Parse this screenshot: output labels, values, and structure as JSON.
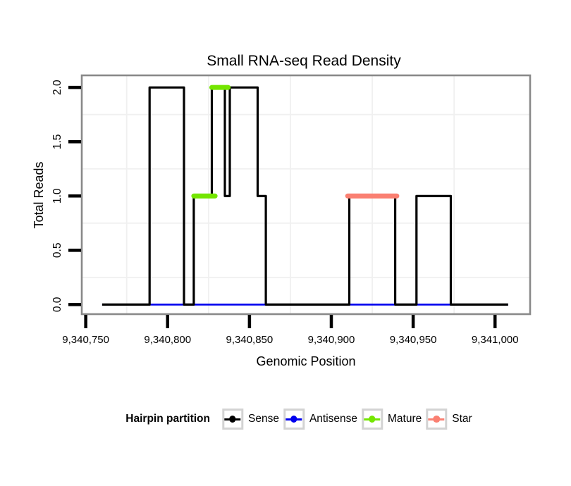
{
  "chart_data": {
    "type": "line",
    "title": "Small RNA-seq Read Density",
    "xlabel": "Genomic Position",
    "ylabel": "Total Reads",
    "xlim": [
      9340748,
      9341021
    ],
    "ylim": [
      -0.082,
      2.105
    ],
    "x_ticks": [
      9340750,
      9340800,
      9340850,
      9340900,
      9340950,
      9341000
    ],
    "x_tick_labels": [
      "9,340,750",
      "9,340,800",
      "9,340,850",
      "9,340,900",
      "9,340,950",
      "9,341,000"
    ],
    "y_ticks": [
      0.0,
      0.5,
      1.0,
      1.5,
      2.0
    ],
    "y_tick_labels": [
      "0.0",
      "0.5",
      "1.0",
      "1.5",
      "2.0"
    ],
    "grid_x": [
      9340775,
      9340825,
      9340875,
      9340925,
      9340975
    ],
    "grid_y": [
      0.25,
      0.75,
      1.25,
      1.75
    ],
    "grid_on": true,
    "legend_position": "bottom",
    "series": [
      {
        "name": "Antisense",
        "color": "#0000EE",
        "width": 2.6,
        "kind": "line",
        "points": [
          [
            9340760,
            0
          ],
          [
            9341008,
            0
          ]
        ]
      },
      {
        "name": "Sense",
        "color": "#000000",
        "width": 3.2,
        "kind": "step",
        "points": [
          [
            9340760,
            0
          ],
          [
            9340789,
            0
          ],
          [
            9340789,
            2
          ],
          [
            9340810,
            2
          ],
          [
            9340810,
            0
          ],
          [
            9340816,
            0
          ],
          [
            9340816,
            1
          ],
          [
            9340827,
            1
          ],
          [
            9340827,
            2
          ],
          [
            9340835,
            2
          ],
          [
            9340835,
            1
          ],
          [
            9340838,
            1
          ],
          [
            9340838,
            2
          ],
          [
            9340855,
            2
          ],
          [
            9340855,
            1
          ],
          [
            9340860,
            1
          ],
          [
            9340860,
            0
          ],
          [
            9340911,
            0
          ],
          [
            9340911,
            1
          ],
          [
            9340939,
            1
          ],
          [
            9340939,
            0
          ],
          [
            9340952,
            0
          ],
          [
            9340952,
            1
          ],
          [
            9340973,
            1
          ],
          [
            9340973,
            0
          ],
          [
            9341008,
            0
          ]
        ]
      },
      {
        "name": "Mature",
        "color": "#74E600",
        "width": 7,
        "kind": "segments",
        "segments": [
          [
            9340816,
            1,
            9340829,
            1
          ],
          [
            9340827,
            2,
            9340837,
            2
          ]
        ]
      },
      {
        "name": "Star",
        "color": "#FA8072",
        "width": 7,
        "kind": "segments",
        "segments": [
          [
            9340910,
            1,
            9340940,
            1
          ]
        ]
      }
    ]
  },
  "legend": {
    "title": "Hairpin partition",
    "items": [
      {
        "label": "Sense",
        "color": "#000000"
      },
      {
        "label": "Antisense",
        "color": "#0000EE"
      },
      {
        "label": "Mature",
        "color": "#74E600"
      },
      {
        "label": "Star",
        "color": "#FA8072"
      }
    ]
  },
  "style_colors": {
    "panel_border": "#898989",
    "grid_line": "#F0F0F0",
    "tick": "#000000",
    "legend_key_border": "#D3D3D3"
  }
}
